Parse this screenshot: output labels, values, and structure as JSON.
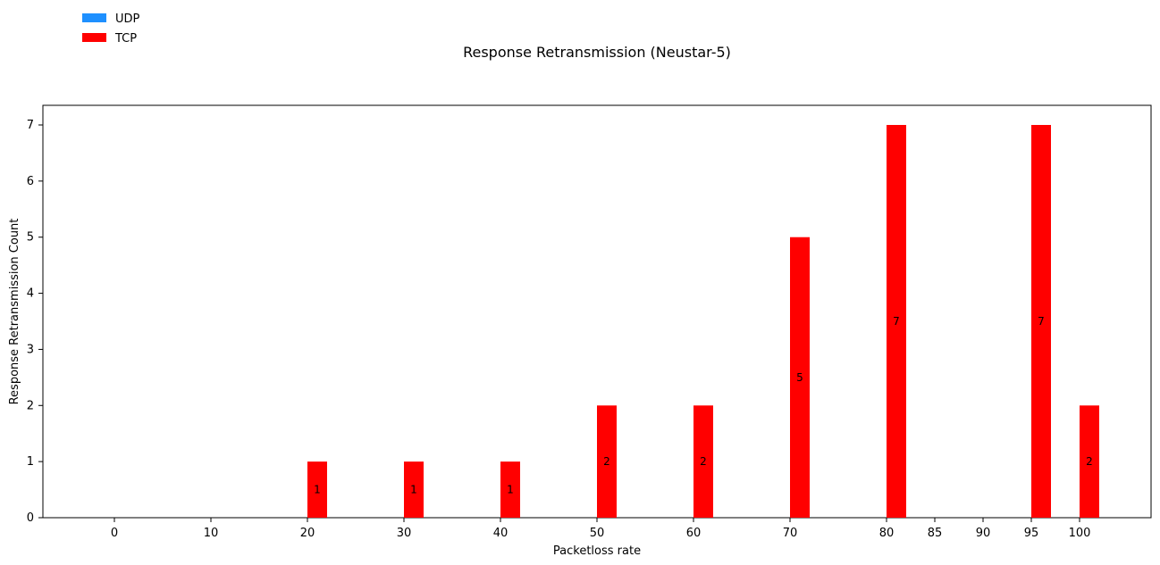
{
  "chart_data": {
    "type": "bar",
    "title": "Response Retransmission (Neustar-5)",
    "xlabel": "Packetloss rate",
    "ylabel": "Response Retransmission Count",
    "categories": [
      "0",
      "10",
      "20",
      "30",
      "40",
      "50",
      "60",
      "70",
      "80",
      "85",
      "90",
      "95",
      "100"
    ],
    "series": [
      {
        "name": "UDP",
        "color": "#1E90FF",
        "values": [
          0,
          0,
          0,
          0,
          0,
          0,
          0,
          0,
          0,
          0,
          0,
          0,
          0
        ]
      },
      {
        "name": "TCP",
        "color": "#FF0000",
        "values": [
          0,
          1,
          1,
          1,
          2,
          2,
          5,
          7,
          0,
          7,
          2,
          0,
          0
        ]
      }
    ],
    "ylim": [
      0,
      7.35
    ],
    "yticks": [
      0,
      1,
      2,
      3,
      4,
      5,
      6,
      7
    ],
    "grid": false,
    "legend_position": "top-left"
  }
}
